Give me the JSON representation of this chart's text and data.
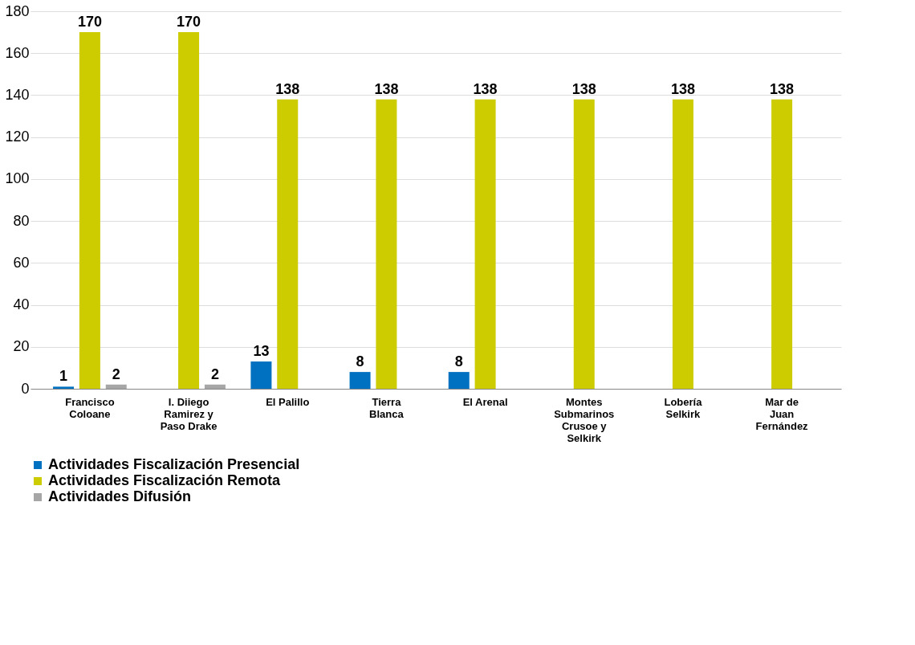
{
  "chart_data": {
    "type": "bar",
    "categories": [
      "Francisco\nColoane",
      "I. Diiego\nRamirez y\nPaso Drake",
      "El Palillo",
      "Tierra\nBlanca",
      "El Arenal",
      "Montes\nSubmarinos\nCrusoe y\nSelkirk",
      "Lobería\nSelkirk",
      "Mar de\nJuan\nFernández"
    ],
    "series": [
      {
        "name": "Actividades Fiscalización  Presencial",
        "color": "#0070c0",
        "values": [
          1,
          null,
          13,
          8,
          8,
          null,
          null,
          null
        ]
      },
      {
        "name": "Actividades Fiscalización  Remota",
        "color": "#cccc00",
        "values": [
          170,
          170,
          138,
          138,
          138,
          138,
          138,
          138
        ]
      },
      {
        "name": "Actividades Difusión",
        "color": "#a6a6a6",
        "values": [
          2,
          2,
          null,
          null,
          null,
          null,
          null,
          null
        ]
      }
    ],
    "ylim": [
      0,
      180
    ],
    "yticks": [
      0,
      20,
      40,
      60,
      80,
      100,
      120,
      140,
      160,
      180
    ],
    "grid": "y",
    "legend": "bottom",
    "data_labels": true
  }
}
